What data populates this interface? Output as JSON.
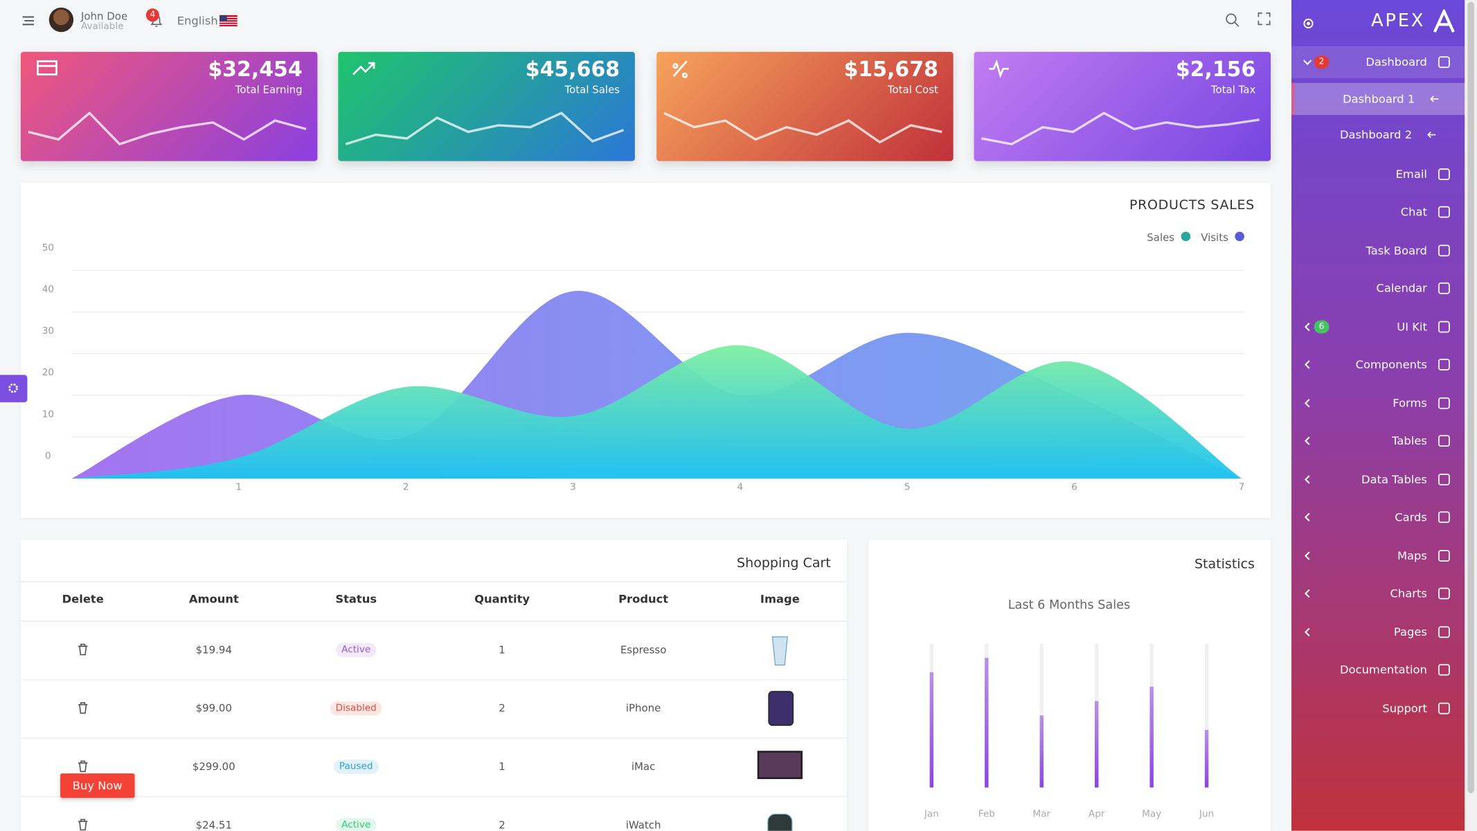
{
  "header": {
    "user_name": "John Doe",
    "user_status": "Available",
    "notifications": 4,
    "language": "English"
  },
  "stat_cards": [
    {
      "value": "$32,454",
      "label": "Total Earning"
    },
    {
      "value": "$45,668",
      "label": "Total Sales"
    },
    {
      "value": "$15,678",
      "label": "Total Cost"
    },
    {
      "value": "$2,156",
      "label": "Total Tax"
    }
  ],
  "chart_data": [
    {
      "type": "area",
      "title": "PRODUCTS SALES",
      "x": [
        0,
        1,
        2,
        3,
        4,
        5,
        6,
        7
      ],
      "xlim": [
        0,
        7
      ],
      "xticks": [
        1,
        2,
        3,
        4,
        5,
        6,
        7
      ],
      "ylim": [
        0,
        50
      ],
      "yticks": [
        0,
        10,
        20,
        30,
        40,
        50
      ],
      "grid": true,
      "legend": "top-right",
      "series": [
        {
          "name": "Sales",
          "color": "#2aa69b",
          "values": [
            0,
            5,
            22,
            15,
            32,
            12,
            28,
            0
          ]
        },
        {
          "name": "Visits",
          "color": "#5b5bd6",
          "values": [
            0,
            20,
            10,
            45,
            20,
            35,
            20,
            0
          ]
        }
      ]
    },
    {
      "type": "bar",
      "title": "Statistics",
      "subtitle": "Last 6 Months Sales",
      "categories": [
        "Jan",
        "Feb",
        "Mar",
        "Apr",
        "May",
        "Jun"
      ],
      "values": [
        80,
        90,
        50,
        60,
        70,
        40
      ],
      "ylim": [
        0,
        100
      ],
      "color": "#8e44e0"
    }
  ],
  "shopping_cart": {
    "title": "Shopping Cart",
    "columns": [
      "Delete",
      "Amount",
      "Status",
      "Quantity",
      "Product",
      "Image"
    ],
    "rows": [
      {
        "amount": "$19.94",
        "status": "Active",
        "status_color": "#9b59d6",
        "quantity": 1,
        "product": "Espresso"
      },
      {
        "amount": "$99.00",
        "status": "Disabled",
        "status_color": "#e74c3c",
        "quantity": 2,
        "product": "iPhone"
      },
      {
        "amount": "$299.00",
        "status": "Paused",
        "status_color": "#2f9fd8",
        "quantity": 1,
        "product": "iMac"
      },
      {
        "amount": "$24.51",
        "status": "Active",
        "status_color": "#2ecc71",
        "quantity": 2,
        "product": "iWatch"
      }
    ]
  },
  "buy_button": "Buy Now",
  "sidebar": {
    "brand": "APEX",
    "items": [
      {
        "label": "Dashboard",
        "badge": 2,
        "badge_color": "#e53935",
        "chevron": "down"
      },
      {
        "label": "Dashboard 1",
        "sub": true,
        "active": true
      },
      {
        "label": "Dashboard 2",
        "sub": true
      },
      {
        "label": "Email"
      },
      {
        "label": "Chat"
      },
      {
        "label": "Task Board"
      },
      {
        "label": "Calendar"
      },
      {
        "label": "UI Kit",
        "badge": 6,
        "badge_color": "#43c463",
        "chevron": "left"
      },
      {
        "label": "Components",
        "chevron": "left"
      },
      {
        "label": "Forms",
        "chevron": "left"
      },
      {
        "label": "Tables",
        "chevron": "left"
      },
      {
        "label": "Data Tables",
        "chevron": "left"
      },
      {
        "label": "Cards",
        "chevron": "left"
      },
      {
        "label": "Maps",
        "chevron": "left"
      },
      {
        "label": "Charts",
        "chevron": "left"
      },
      {
        "label": "Pages",
        "chevron": "left"
      },
      {
        "label": "Documentation"
      },
      {
        "label": "Support"
      }
    ]
  }
}
